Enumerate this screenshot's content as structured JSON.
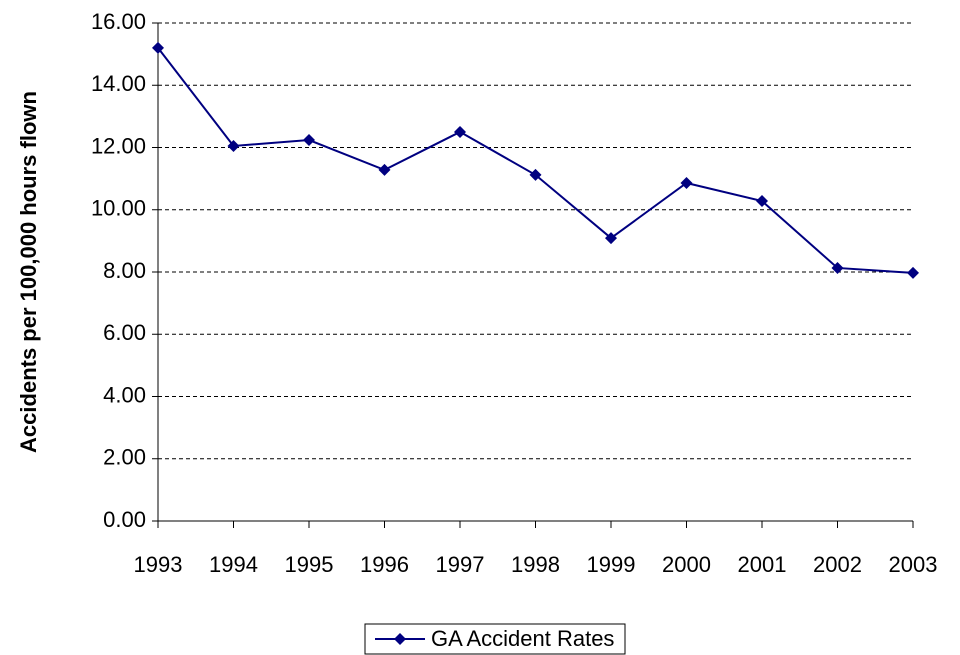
{
  "chart_data": {
    "type": "line",
    "ylabel": "Accidents per 100,000 hours flown",
    "categories": [
      "1993",
      "1994",
      "1995",
      "1996",
      "1997",
      "1998",
      "1999",
      "2000",
      "2001",
      "2002",
      "2003"
    ],
    "series": [
      {
        "name": "GA Accident Rates",
        "color": "#000080",
        "values": [
          15.2,
          12.05,
          12.24,
          11.28,
          12.5,
          11.12,
          9.09,
          10.86,
          10.28,
          8.13,
          7.97
        ]
      }
    ],
    "ylim": [
      0,
      16
    ],
    "yticks": [
      {
        "value": 0,
        "label": "0.00"
      },
      {
        "value": 2,
        "label": "2.00"
      },
      {
        "value": 4,
        "label": "4.00"
      },
      {
        "value": 6,
        "label": "6.00"
      },
      {
        "value": 8,
        "label": "8.00"
      },
      {
        "value": 10,
        "label": "10.00"
      },
      {
        "value": 12,
        "label": "12.00"
      },
      {
        "value": 14,
        "label": "14.00"
      },
      {
        "value": 16,
        "label": "16.00"
      }
    ],
    "grid": true,
    "legend": "bottom"
  }
}
